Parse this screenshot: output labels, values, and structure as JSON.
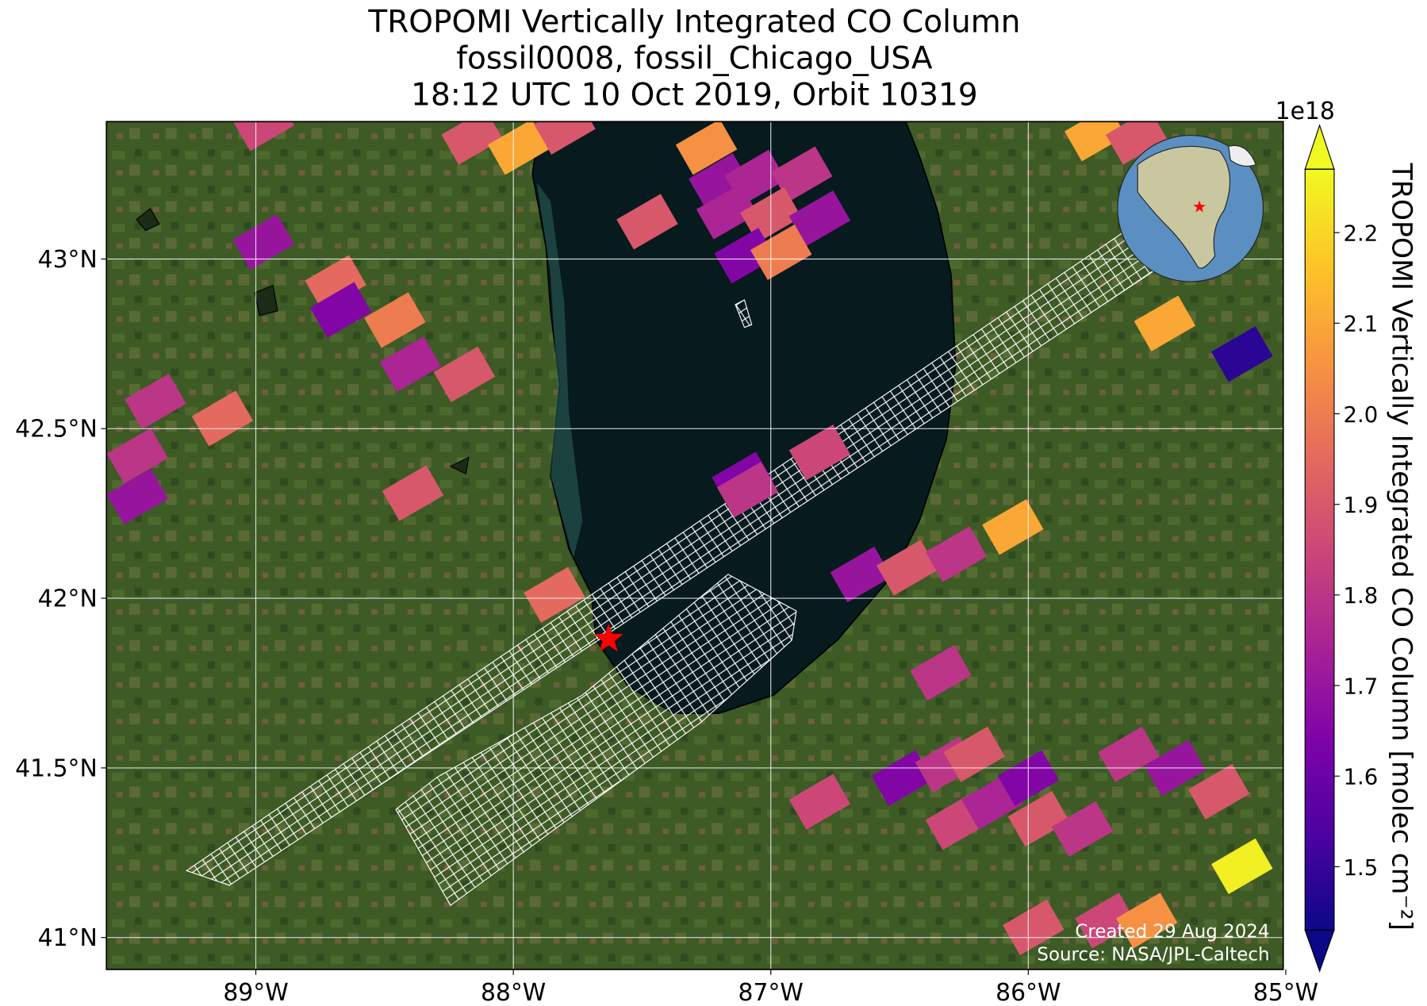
{
  "chart_data": {
    "type": "map",
    "title": [
      "TROPOMI Vertically Integrated CO Column",
      "fossil0008, fossil_Chicago_USA",
      "18:12 UTC 10 Oct 2019, Orbit 10319"
    ],
    "xlim": [
      -89.58,
      -85.01
    ],
    "ylim": [
      40.906,
      43.405
    ],
    "xticks": [
      {
        "value": -89,
        "label": "89°W"
      },
      {
        "value": -88,
        "label": "88°W"
      },
      {
        "value": -87,
        "label": "87°W"
      },
      {
        "value": -86,
        "label": "86°W"
      },
      {
        "value": -85,
        "label": "85°W"
      }
    ],
    "yticks": [
      {
        "value": 41,
        "label": "41°N"
      },
      {
        "value": 41.5,
        "label": "41.5°N"
      },
      {
        "value": 42,
        "label": "42°N"
      },
      {
        "value": 42.5,
        "label": "42.5°N"
      },
      {
        "value": 43,
        "label": "43°N"
      }
    ],
    "grid": true,
    "colormap": "plasma",
    "clim": [
      1.43,
      2.27
    ],
    "colorbar_label": "TROPOMI Vertically Integrated CO Column [molec cm⁻²]",
    "colorbar_offset": "1e18",
    "colorbar_ticks": [
      1.5,
      1.6,
      1.7,
      1.8,
      1.9,
      {
        "value": 2,
        "label": "2.0"
      },
      2.1,
      2.2
    ],
    "target": {
      "lon": -87.63,
      "lat": 41.88,
      "color": "#ff0000"
    },
    "pixels": [
      {
        "lon": -88.97,
        "lat": 43.4,
        "value": 1.85
      },
      {
        "lon": -88.16,
        "lat": 43.36,
        "value": 1.9
      },
      {
        "lon": -87.98,
        "lat": 43.33,
        "value": 2.1
      },
      {
        "lon": -87.8,
        "lat": 43.39,
        "value": 1.9
      },
      {
        "lon": -87.25,
        "lat": 43.33,
        "value": 2.05
      },
      {
        "lon": -87.2,
        "lat": 43.23,
        "value": 1.7
      },
      {
        "lon": -87.06,
        "lat": 43.24,
        "value": 1.75
      },
      {
        "lon": -86.88,
        "lat": 43.25,
        "value": 1.8
      },
      {
        "lon": -87.48,
        "lat": 43.11,
        "value": 1.9
      },
      {
        "lon": -87.17,
        "lat": 43.14,
        "value": 1.75
      },
      {
        "lon": -87.0,
        "lat": 43.13,
        "value": 1.9
      },
      {
        "lon": -86.81,
        "lat": 43.12,
        "value": 1.7
      },
      {
        "lon": -87.1,
        "lat": 43.01,
        "value": 1.65
      },
      {
        "lon": -86.96,
        "lat": 43.02,
        "value": 2.0
      },
      {
        "lon": -88.97,
        "lat": 43.05,
        "value": 1.7
      },
      {
        "lon": -88.69,
        "lat": 42.93,
        "value": 1.95
      },
      {
        "lon": -88.67,
        "lat": 42.85,
        "value": 1.65
      },
      {
        "lon": -88.46,
        "lat": 42.82,
        "value": 2.0
      },
      {
        "lon": -88.4,
        "lat": 42.69,
        "value": 1.75
      },
      {
        "lon": -88.19,
        "lat": 42.66,
        "value": 1.9
      },
      {
        "lon": -89.39,
        "lat": 42.58,
        "value": 1.8
      },
      {
        "lon": -89.46,
        "lat": 42.42,
        "value": 1.8
      },
      {
        "lon": -89.13,
        "lat": 42.53,
        "value": 1.95
      },
      {
        "lon": -89.46,
        "lat": 42.3,
        "value": 1.7
      },
      {
        "lon": -88.39,
        "lat": 42.31,
        "value": 1.9
      },
      {
        "lon": -87.84,
        "lat": 42.01,
        "value": 1.95
      },
      {
        "lon": -87.11,
        "lat": 42.35,
        "value": 1.65
      },
      {
        "lon": -87.09,
        "lat": 42.32,
        "value": 1.8
      },
      {
        "lon": -86.81,
        "lat": 42.43,
        "value": 1.85
      },
      {
        "lon": -86.65,
        "lat": 42.07,
        "value": 1.7
      },
      {
        "lon": -86.47,
        "lat": 42.09,
        "value": 1.9
      },
      {
        "lon": -86.28,
        "lat": 42.13,
        "value": 1.8
      },
      {
        "lon": -86.06,
        "lat": 42.21,
        "value": 2.1
      },
      {
        "lon": -86.34,
        "lat": 41.78,
        "value": 1.8
      },
      {
        "lon": -85.47,
        "lat": 42.81,
        "value": 2.1
      },
      {
        "lon": -85.17,
        "lat": 42.72,
        "value": 1.48
      },
      {
        "lon": -85.74,
        "lat": 43.37,
        "value": 2.1
      },
      {
        "lon": -85.58,
        "lat": 43.36,
        "value": 1.9
      },
      {
        "lon": -86.49,
        "lat": 41.47,
        "value": 1.65
      },
      {
        "lon": -86.32,
        "lat": 41.51,
        "value": 1.8
      },
      {
        "lon": -86.21,
        "lat": 41.54,
        "value": 1.9
      },
      {
        "lon": -86.28,
        "lat": 41.34,
        "value": 1.85
      },
      {
        "lon": -86.14,
        "lat": 41.4,
        "value": 1.75
      },
      {
        "lon": -86.0,
        "lat": 41.47,
        "value": 1.65
      },
      {
        "lon": -85.96,
        "lat": 41.35,
        "value": 1.9
      },
      {
        "lon": -85.79,
        "lat": 41.32,
        "value": 1.8
      },
      {
        "lon": -85.61,
        "lat": 41.54,
        "value": 1.8
      },
      {
        "lon": -85.43,
        "lat": 41.5,
        "value": 1.7
      },
      {
        "lon": -85.26,
        "lat": 41.43,
        "value": 1.9
      },
      {
        "lon": -86.81,
        "lat": 41.4,
        "value": 1.85
      },
      {
        "lon": -85.17,
        "lat": 41.21,
        "value": 2.25
      },
      {
        "lon": -85.7,
        "lat": 41.05,
        "value": 1.85
      },
      {
        "lon": -85.54,
        "lat": 41.05,
        "value": 2.05
      },
      {
        "lon": -85.98,
        "lat": 41.03,
        "value": 1.9
      }
    ],
    "credits": [
      "Created 29 Aug 2024",
      "Source: NASA/JPL-Caltech"
    ]
  }
}
